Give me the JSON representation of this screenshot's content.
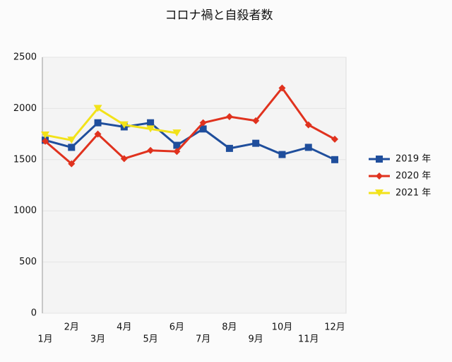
{
  "chart_data": {
    "type": "line",
    "title": "コロナ禍と自殺者数",
    "categories": [
      "1月",
      "2月",
      "3月",
      "4月",
      "5月",
      "6月",
      "7月",
      "8月",
      "9月",
      "10月",
      "11月",
      "12月"
    ],
    "series": [
      {
        "name": "2019 年",
        "color": "#1f4e9c",
        "marker": "square",
        "values": [
          1690,
          1620,
          1860,
          1820,
          1860,
          1640,
          1800,
          1610,
          1660,
          1550,
          1620,
          1500
        ]
      },
      {
        "name": "2020 年",
        "color": "#e0321e",
        "marker": "diamond",
        "values": [
          1680,
          1460,
          1750,
          1510,
          1590,
          1580,
          1860,
          1920,
          1880,
          2200,
          1840,
          1700
        ]
      },
      {
        "name": "2021 年",
        "color": "#f2e21a",
        "marker": "triangle-down",
        "values": [
          1740,
          1690,
          2000,
          1840,
          1800,
          1760,
          null,
          null,
          null,
          null,
          null,
          null
        ]
      }
    ],
    "ylim": [
      0,
      2500
    ],
    "yticks": [
      0,
      500,
      1000,
      1500,
      2000,
      2500
    ],
    "grid": true,
    "legend": "right"
  }
}
